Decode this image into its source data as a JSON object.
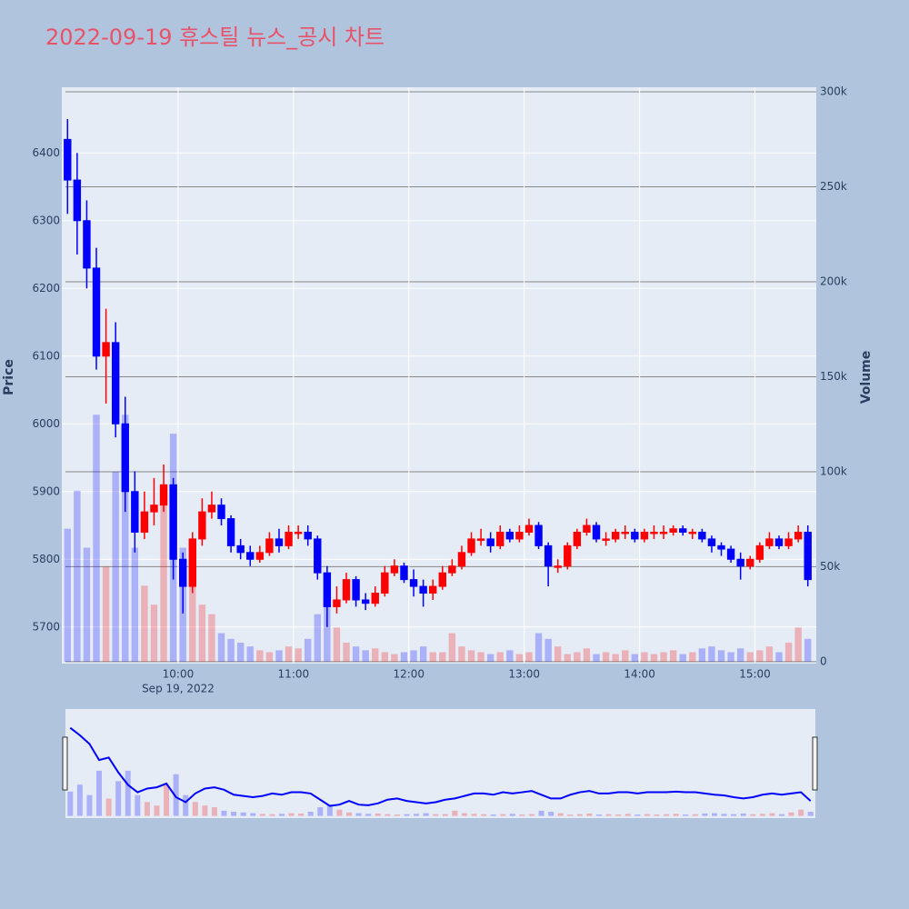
{
  "chart_data": {
    "type": "candlestick",
    "title": "2022-09-19 휴스틸 뉴스_공시 차트",
    "y_label": "Price",
    "y2_label": "Volume",
    "x_date_label": "Sep 19, 2022",
    "xlim": [
      "09:00",
      "15:30"
    ],
    "xticks": [
      "10:00",
      "11:00",
      "12:00",
      "13:00",
      "14:00",
      "15:00"
    ],
    "ylim": [
      5646,
      6497
    ],
    "yticks": [
      5700,
      5800,
      5900,
      6000,
      6100,
      6200,
      6300,
      6400
    ],
    "y2lim": [
      -1000,
      302400
    ],
    "y2ticks": [
      0,
      {
        "value": 50000,
        "label": "50k"
      },
      {
        "value": 100000,
        "label": "100k"
      },
      {
        "value": 150000,
        "label": "150k"
      },
      {
        "value": 200000,
        "label": "200k"
      },
      {
        "value": 250000,
        "label": "250k"
      },
      {
        "value": 300000,
        "label": "300k"
      }
    ],
    "increasing_color": "#ff0000",
    "decreasing_color": "#0000ff",
    "x": [
      "09:00",
      "09:05",
      "09:10",
      "09:15",
      "09:20",
      "09:25",
      "09:30",
      "09:35",
      "09:40",
      "09:45",
      "09:50",
      "09:55",
      "10:00",
      "10:05",
      "10:10",
      "10:15",
      "10:20",
      "10:25",
      "10:30",
      "10:35",
      "10:40",
      "10:45",
      "10:50",
      "10:55",
      "11:00",
      "11:05",
      "11:10",
      "11:15",
      "11:20",
      "11:25",
      "11:30",
      "11:35",
      "11:40",
      "11:45",
      "11:50",
      "11:55",
      "12:00",
      "12:05",
      "12:10",
      "12:15",
      "12:20",
      "12:25",
      "12:30",
      "12:35",
      "12:40",
      "12:45",
      "12:50",
      "12:55",
      "13:00",
      "13:05",
      "13:10",
      "13:15",
      "13:20",
      "13:25",
      "13:30",
      "13:35",
      "13:40",
      "13:45",
      "13:50",
      "13:55",
      "14:00",
      "14:05",
      "14:10",
      "14:15",
      "14:20",
      "14:25",
      "14:30",
      "14:35",
      "14:40",
      "14:45",
      "14:50",
      "14:55",
      "15:00",
      "15:05",
      "15:10",
      "15:15",
      "15:20",
      "15:25"
    ],
    "open": [
      6420,
      6360,
      6300,
      6230,
      6100,
      6120,
      6000,
      5900,
      5840,
      5870,
      5880,
      5910,
      5800,
      5760,
      5830,
      5870,
      5880,
      5860,
      5820,
      5810,
      5800,
      5810,
      5830,
      5820,
      5840,
      5840,
      5830,
      5780,
      5730,
      5740,
      5770,
      5740,
      5735,
      5750,
      5780,
      5790,
      5770,
      5760,
      5750,
      5760,
      5780,
      5790,
      5810,
      5830,
      5830,
      5820,
      5840,
      5830,
      5840,
      5850,
      5820,
      5790,
      5790,
      5820,
      5840,
      5850,
      5830,
      5830,
      5840,
      5840,
      5830,
      5840,
      5840,
      5840,
      5845,
      5840,
      5840,
      5830,
      5820,
      5815,
      5800,
      5790,
      5800,
      5820,
      5830,
      5820,
      5830,
      5840
    ],
    "high": [
      6450,
      6400,
      6330,
      6260,
      6170,
      6150,
      6040,
      5930,
      5900,
      5920,
      5940,
      5920,
      5810,
      5840,
      5890,
      5900,
      5890,
      5865,
      5830,
      5820,
      5820,
      5840,
      5845,
      5850,
      5850,
      5850,
      5835,
      5790,
      5760,
      5780,
      5775,
      5750,
      5760,
      5790,
      5800,
      5795,
      5785,
      5770,
      5770,
      5790,
      5800,
      5820,
      5840,
      5845,
      5840,
      5850,
      5845,
      5850,
      5860,
      5855,
      5825,
      5800,
      5825,
      5845,
      5860,
      5855,
      5840,
      5845,
      5850,
      5845,
      5845,
      5850,
      5850,
      5850,
      5850,
      5845,
      5845,
      5835,
      5825,
      5820,
      5810,
      5805,
      5825,
      5840,
      5835,
      5840,
      5850,
      5850
    ],
    "low": [
      6310,
      6250,
      6200,
      6080,
      6030,
      5980,
      5870,
      5810,
      5830,
      5850,
      5870,
      5770,
      5720,
      5750,
      5820,
      5860,
      5850,
      5810,
      5800,
      5790,
      5795,
      5805,
      5810,
      5815,
      5830,
      5820,
      5770,
      5700,
      5720,
      5735,
      5730,
      5725,
      5730,
      5745,
      5775,
      5765,
      5745,
      5730,
      5740,
      5755,
      5775,
      5785,
      5805,
      5820,
      5810,
      5815,
      5825,
      5825,
      5835,
      5815,
      5760,
      5780,
      5785,
      5815,
      5835,
      5825,
      5820,
      5825,
      5830,
      5825,
      5825,
      5830,
      5830,
      5835,
      5835,
      5830,
      5825,
      5810,
      5805,
      5795,
      5770,
      5785,
      5795,
      5815,
      5815,
      5815,
      5825,
      5760
    ],
    "close": [
      6360,
      6300,
      6230,
      6100,
      6120,
      6000,
      5900,
      5840,
      5870,
      5880,
      5910,
      5800,
      5760,
      5830,
      5870,
      5880,
      5860,
      5820,
      5810,
      5800,
      5810,
      5830,
      5820,
      5840,
      5840,
      5830,
      5780,
      5730,
      5740,
      5770,
      5740,
      5735,
      5750,
      5780,
      5790,
      5770,
      5760,
      5750,
      5760,
      5780,
      5790,
      5810,
      5830,
      5830,
      5820,
      5840,
      5830,
      5840,
      5850,
      5820,
      5790,
      5790,
      5820,
      5840,
      5850,
      5830,
      5830,
      5840,
      5840,
      5830,
      5840,
      5840,
      5840,
      5845,
      5840,
      5840,
      5830,
      5820,
      5815,
      5800,
      5790,
      5800,
      5820,
      5830,
      5820,
      5830,
      5840,
      5770
    ],
    "volume": [
      70000,
      90000,
      60000,
      130000,
      50000,
      100000,
      130000,
      60000,
      40000,
      30000,
      90000,
      120000,
      60000,
      40000,
      30000,
      25000,
      15000,
      12000,
      10000,
      8000,
      6000,
      5000,
      6000,
      8000,
      7000,
      12000,
      25000,
      30000,
      18000,
      10000,
      8000,
      6000,
      7000,
      5000,
      4000,
      5000,
      6000,
      8000,
      5000,
      5000,
      15000,
      8000,
      6000,
      5000,
      4000,
      5000,
      6000,
      4000,
      5000,
      15000,
      12000,
      8000,
      4000,
      5000,
      7000,
      4000,
      5000,
      4000,
      6000,
      4000,
      5000,
      4000,
      5000,
      6000,
      4000,
      5000,
      7000,
      8000,
      6000,
      5000,
      7000,
      5000,
      6000,
      8000,
      5000,
      10000,
      18000,
      12000
    ]
  }
}
